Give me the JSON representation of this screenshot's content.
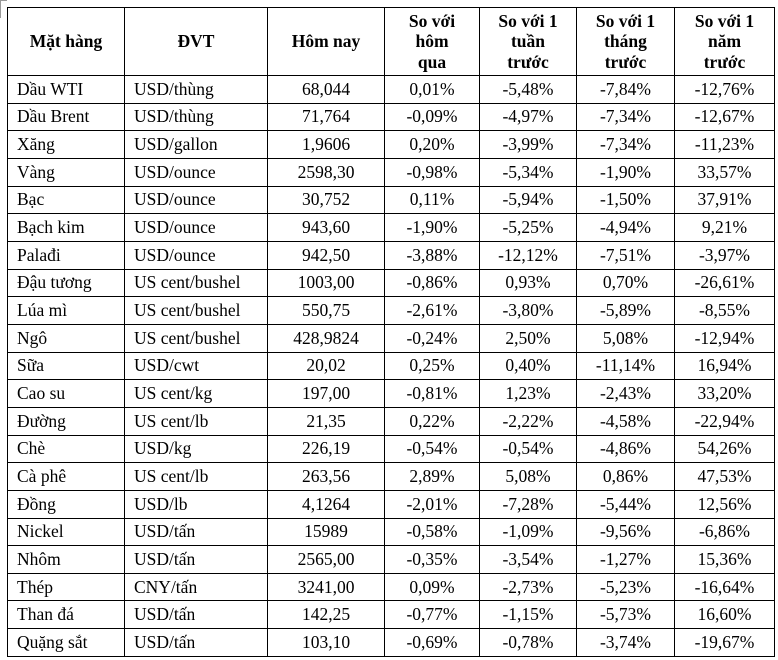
{
  "colors": {
    "border": "#000000",
    "text": "#000000",
    "background": "#ffffff"
  },
  "document": {
    "table": {
      "columns": [
        {
          "key": "mat-hang",
          "label": "Mặt hàng"
        },
        {
          "key": "dvt",
          "label": "ĐVT"
        },
        {
          "key": "hom-nay",
          "label": "Hôm nay"
        },
        {
          "key": "vs-hom-qua",
          "label": "So với\nhôm\nqua"
        },
        {
          "key": "vs-1-tuan-truoc",
          "label": "So với 1\ntuần\ntrước"
        },
        {
          "key": "vs-1-thang-truoc",
          "label": "So với 1\ntháng\ntrước"
        },
        {
          "key": "vs-1-nam-truoc",
          "label": "So với 1\nnăm\ntrước"
        }
      ],
      "rows": [
        [
          "Dầu WTI",
          "USD/thùng",
          "68,044",
          "0,01%",
          "-5,48%",
          "-7,84%",
          "-12,76%"
        ],
        [
          "Dầu Brent",
          "USD/thùng",
          "71,764",
          "-0,09%",
          "-4,97%",
          "-7,34%",
          "-12,67%"
        ],
        [
          "Xăng",
          "USD/gallon",
          "1,9606",
          "0,20%",
          "-3,99%",
          "-7,34%",
          "-11,23%"
        ],
        [
          "Vàng",
          "USD/ounce",
          "2598,30",
          "-0,98%",
          "-5,34%",
          "-1,90%",
          "33,57%"
        ],
        [
          "Bạc",
          "USD/ounce",
          "30,752",
          "0,11%",
          "-5,94%",
          "-1,50%",
          "37,91%"
        ],
        [
          "Bạch kim",
          "USD/ounce",
          "943,60",
          "-1,90%",
          "-5,25%",
          "-4,94%",
          "9,21%"
        ],
        [
          "Palađi",
          "USD/ounce",
          "942,50",
          "-3,88%",
          "-12,12%",
          "-7,51%",
          "-3,97%"
        ],
        [
          "Đậu tương",
          "US cent/bushel",
          "1003,00",
          "-0,86%",
          "0,93%",
          "0,70%",
          "-26,61%"
        ],
        [
          "Lúa mì",
          "US cent/bushel",
          "550,75",
          "-2,61%",
          "-3,80%",
          "-5,89%",
          "-8,55%"
        ],
        [
          "Ngô",
          "US cent/bushel",
          "428,9824",
          "-0,24%",
          "2,50%",
          "5,08%",
          "-12,94%"
        ],
        [
          "Sữa",
          "USD/cwt",
          "20,02",
          "0,25%",
          "0,40%",
          "-11,14%",
          "16,94%"
        ],
        [
          "Cao su",
          "US cent/kg",
          "197,00",
          "-0,81%",
          "1,23%",
          "-2,43%",
          "33,20%"
        ],
        [
          "Đường",
          "US cent/lb",
          "21,35",
          "0,22%",
          "-2,22%",
          "-4,58%",
          "-22,94%"
        ],
        [
          "Chè",
          "USD/kg",
          "226,19",
          "-0,54%",
          "-0,54%",
          "-4,86%",
          "54,26%"
        ],
        [
          "Cà phê",
          "US cent/lb",
          "263,56",
          "2,89%",
          "5,08%",
          "0,86%",
          "47,53%"
        ],
        [
          "Đồng",
          "USD/lb",
          "4,1264",
          "-2,01%",
          "-7,28%",
          "-5,44%",
          "12,56%"
        ],
        [
          "Nickel",
          "USD/tấn",
          "15989",
          "-0,58%",
          "-1,09%",
          "-9,56%",
          "-6,86%"
        ],
        [
          "Nhôm",
          "USD/tấn",
          "2565,00",
          "-0,35%",
          "-3,54%",
          "-1,27%",
          "15,36%"
        ],
        [
          "Thép",
          "CNY/tấn",
          "3241,00",
          "0,09%",
          "-2,73%",
          "-5,23%",
          "-16,64%"
        ],
        [
          "Than đá",
          "USD/tấn",
          "142,25",
          "-0,77%",
          "-1,15%",
          "-5,73%",
          "16,60%"
        ],
        [
          "Quặng sắt",
          "USD/tấn",
          "103,10",
          "-0,69%",
          "-0,78%",
          "-3,74%",
          "-19,67%"
        ]
      ]
    }
  }
}
